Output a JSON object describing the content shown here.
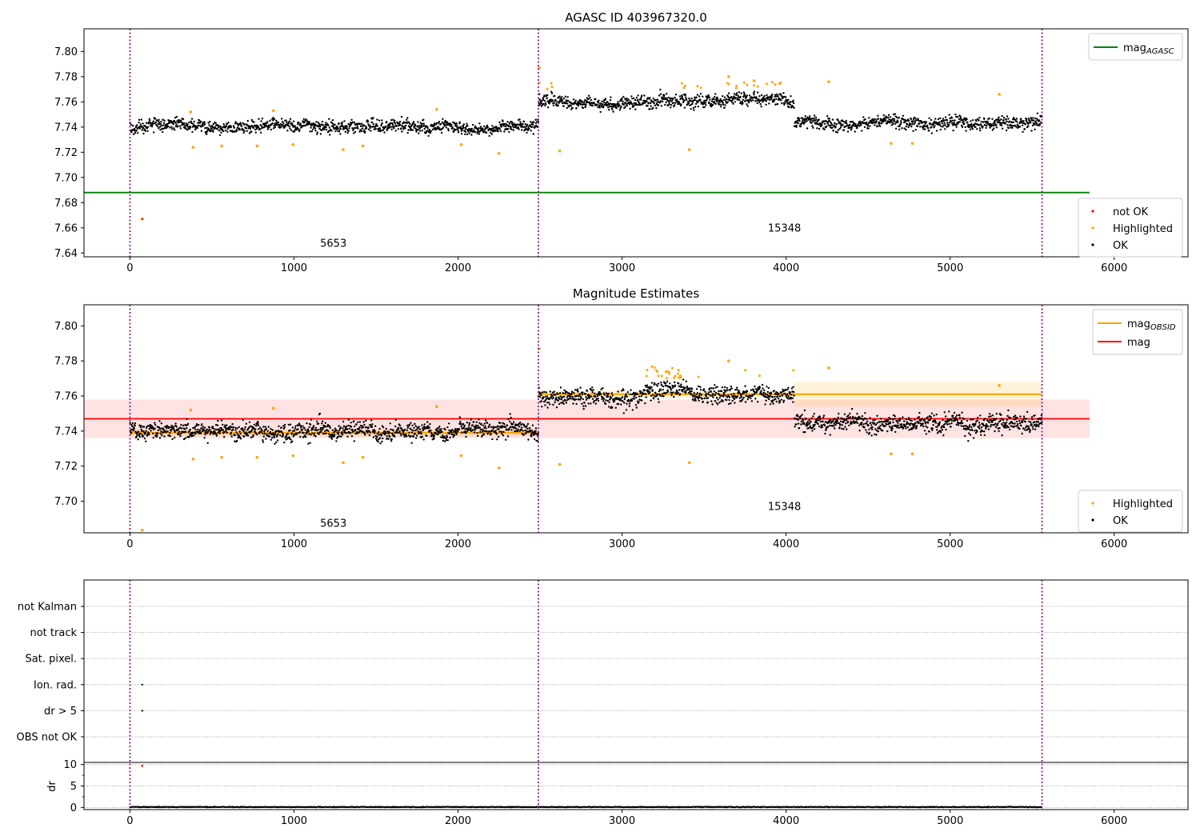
{
  "chart_data": [
    {
      "type": "scatter",
      "title": "AGASC ID 403967320.0",
      "xlim": [
        -280,
        6450
      ],
      "ylim": [
        7.637,
        7.818
      ],
      "yticks": [
        7.64,
        7.66,
        7.68,
        7.7,
        7.72,
        7.74,
        7.76,
        7.78,
        7.8
      ],
      "ytick_labels": [
        "7.64",
        "7.66",
        "7.68",
        "7.70",
        "7.72",
        "7.74",
        "7.76",
        "7.78",
        "7.80"
      ],
      "xticks": [
        0,
        1000,
        2000,
        3000,
        4000,
        5000,
        6000
      ],
      "xtick_labels": [
        "0",
        "1000",
        "2000",
        "3000",
        "4000",
        "5000",
        "6000"
      ],
      "obs_boundaries": [
        0,
        2490,
        5560
      ],
      "obs_labels": [
        {
          "text": "5653",
          "x": 1240,
          "y": 7.645
        },
        {
          "text": "15348",
          "x": 3990,
          "y": 7.657
        }
      ],
      "reference_lines": [
        {
          "label": "mag",
          "sub": "AGASC",
          "y": 7.688,
          "x": [
            -280,
            5850
          ],
          "color": "#008000"
        }
      ],
      "segments": [
        {
          "x": [
            0,
            2490
          ],
          "ok_mean": 7.74,
          "ok_spread": 0.0045
        },
        {
          "x": [
            2490,
            4050
          ],
          "ok_mean": 7.76,
          "ok_spread": 0.005
        },
        {
          "x": [
            4050,
            5560
          ],
          "ok_mean": 7.744,
          "ok_spread": 0.005
        }
      ],
      "outliers": [
        {
          "x": 75,
          "y": 7.667,
          "class": "Highlighted"
        },
        {
          "x": 75,
          "y": 7.667,
          "class": "not OK"
        },
        {
          "x": 385,
          "y": 7.724,
          "class": "Highlighted"
        },
        {
          "x": 560,
          "y": 7.725,
          "class": "Highlighted"
        },
        {
          "x": 775,
          "y": 7.725,
          "class": "Highlighted"
        },
        {
          "x": 995,
          "y": 7.726,
          "class": "Highlighted"
        },
        {
          "x": 1300,
          "y": 7.722,
          "class": "Highlighted"
        },
        {
          "x": 1420,
          "y": 7.725,
          "class": "Highlighted"
        },
        {
          "x": 2020,
          "y": 7.726,
          "class": "Highlighted"
        },
        {
          "x": 2250,
          "y": 7.719,
          "class": "Highlighted"
        },
        {
          "x": 370,
          "y": 7.752,
          "class": "Highlighted"
        },
        {
          "x": 875,
          "y": 7.753,
          "class": "Highlighted"
        },
        {
          "x": 1870,
          "y": 7.754,
          "class": "Highlighted"
        },
        {
          "x": 2620,
          "y": 7.721,
          "class": "Highlighted"
        },
        {
          "x": 3410,
          "y": 7.722,
          "class": "Highlighted"
        },
        {
          "x": 4640,
          "y": 7.727,
          "class": "Highlighted"
        },
        {
          "x": 4770,
          "y": 7.727,
          "class": "Highlighted"
        },
        {
          "x": 2495,
          "y": 7.787,
          "class": "Highlighted"
        },
        {
          "x": 3650,
          "y": 7.78,
          "class": "Highlighted"
        },
        {
          "x": 4260,
          "y": 7.776,
          "class": "Highlighted"
        },
        {
          "x": 5300,
          "y": 7.766,
          "class": "Highlighted"
        }
      ],
      "legends": [
        {
          "position": "upper-right",
          "entries": [
            {
              "label": "mag",
              "sub": "AGASC",
              "kind": "line",
              "color": "#008000"
            }
          ]
        },
        {
          "position": "lower-right",
          "entries": [
            {
              "label": "not OK",
              "kind": "point",
              "color": "#ff0000"
            },
            {
              "label": "Highlighted",
              "kind": "point",
              "color": "#ffa500"
            },
            {
              "label": "OK",
              "kind": "point",
              "color": "#000000"
            }
          ]
        }
      ]
    },
    {
      "type": "scatter",
      "title": "Magnitude Estimates",
      "xlim": [
        -280,
        6450
      ],
      "ylim": [
        7.682,
        7.812
      ],
      "yticks": [
        7.7,
        7.72,
        7.74,
        7.76,
        7.78,
        7.8
      ],
      "ytick_labels": [
        "7.70",
        "7.72",
        "7.74",
        "7.76",
        "7.78",
        "7.80"
      ],
      "xticks": [
        0,
        1000,
        2000,
        3000,
        4000,
        5000,
        6000
      ],
      "xtick_labels": [
        "0",
        "1000",
        "2000",
        "3000",
        "4000",
        "5000",
        "6000"
      ],
      "obs_boundaries": [
        0,
        2490,
        5560
      ],
      "obs_labels": [
        {
          "text": "5653",
          "x": 1240,
          "y": 7.6855
        },
        {
          "text": "15348",
          "x": 3990,
          "y": 7.695
        }
      ],
      "mag_line": {
        "label": "mag",
        "y": 7.747,
        "band": [
          7.736,
          7.758
        ],
        "x": [
          -280,
          5850
        ],
        "color": "#ff0000"
      },
      "obsid_bands": [
        {
          "x": [
            0,
            2490
          ],
          "y": 7.739,
          "band": [
            7.737,
            7.741
          ]
        },
        {
          "x": [
            2490,
            4050
          ],
          "y": 7.761,
          "band": [
            7.759,
            7.763
          ]
        },
        {
          "x": [
            4050,
            5560
          ],
          "y": 7.761,
          "band": [
            7.754,
            7.768
          ]
        }
      ],
      "legends": [
        {
          "position": "upper-right",
          "entries": [
            {
              "label": "mag",
              "sub": "OBSID",
              "kind": "line",
              "color": "#ffa500"
            },
            {
              "label": "mag",
              "kind": "line",
              "color": "#ff0000"
            }
          ]
        },
        {
          "position": "lower-right",
          "entries": [
            {
              "label": "Highlighted",
              "kind": "point",
              "color": "#ffa500"
            },
            {
              "label": "OK",
              "kind": "point",
              "color": "#000000"
            }
          ]
        }
      ]
    },
    {
      "type": "scatter",
      "title": "",
      "xlim": [
        -280,
        6450
      ],
      "flag_categories": [
        "not Kalman",
        "not track",
        "Sat. pixel.",
        "Ion. rad.",
        "dr > 5",
        "OBS not OK"
      ],
      "flag_points": [
        {
          "x": 75,
          "category": "Ion. rad."
        },
        {
          "x": 75,
          "category": "dr > 5"
        }
      ],
      "dr": {
        "ylabel": "dr",
        "ylim": [
          -0.5,
          10.5
        ],
        "yticks": [
          0,
          5,
          10
        ],
        "ytick_labels": [
          "0",
          "5",
          "10"
        ],
        "typical_value": 0.1,
        "outliers": [
          {
            "x": 75,
            "y": 9.7,
            "class": "not OK"
          }
        ]
      },
      "xticks": [
        0,
        1000,
        2000,
        3000,
        4000,
        5000,
        6000
      ],
      "xtick_labels": [
        "0",
        "1000",
        "2000",
        "3000",
        "4000",
        "5000",
        "6000"
      ],
      "obs_boundaries": [
        0,
        2490,
        5560
      ]
    }
  ]
}
